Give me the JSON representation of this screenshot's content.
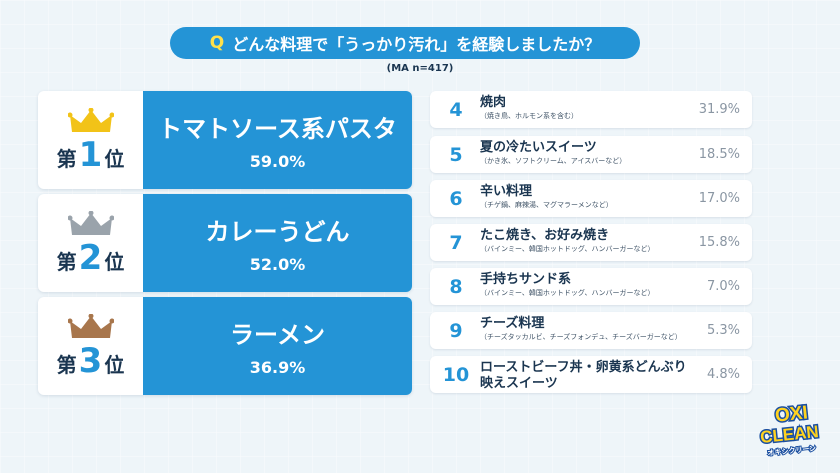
{
  "question": {
    "q_mark": "Q",
    "text": "どんな料理で「うっかり汚れ」を経験しましたか？"
  },
  "sample_note": "(MA n=417)",
  "chart_data": {
    "type": "table",
    "title": "どんな料理で「うっかり汚れ」を経験しましたか？",
    "note": "(MA n=417)",
    "rows": [
      {
        "rank": "1",
        "name": "トマトソース系パスタ",
        "sub": "",
        "value": 59.0,
        "label": "59.0%"
      },
      {
        "rank": "2",
        "name": "カレーうどん",
        "sub": "",
        "value": 52.0,
        "label": "52.0%"
      },
      {
        "rank": "3",
        "name": "ラーメン",
        "sub": "",
        "value": 36.9,
        "label": "36.9%"
      },
      {
        "rank": "4",
        "name": "焼肉",
        "sub": "（焼き鳥、ホルモン系を含む）",
        "value": 31.9,
        "label": "31.9%"
      },
      {
        "rank": "5",
        "name": "夏の冷たいスイーツ",
        "sub": "（かき氷、ソフトクリーム、アイスバーなど）",
        "value": 18.5,
        "label": "18.5%"
      },
      {
        "rank": "6",
        "name": "辛い料理",
        "sub": "（チゲ鍋、麻辣湯、マグマラーメンなど）",
        "value": 17.0,
        "label": "17.0%"
      },
      {
        "rank": "7",
        "name": "たこ焼き、お好み焼き",
        "sub": "（バインミー、韓国ホットドッグ、ハンバーガーなど）",
        "value": 15.8,
        "label": "15.8%"
      },
      {
        "rank": "8",
        "name": "手持ちサンド系",
        "sub": "（バインミー、韓国ホットドッグ、ハンバーガーなど）",
        "value": 7.0,
        "label": "7.0%"
      },
      {
        "rank": "9",
        "name": "チーズ料理",
        "sub": "（チーズタッカルビ、チーズフォンデュ、チーズバーガーなど）",
        "value": 5.3,
        "label": "5.3%"
      },
      {
        "rank": "10",
        "name": "ローストビーフ丼・卵黄系どんぶり",
        "name2": "映えスイーツ",
        "sub": "",
        "value": 4.8,
        "label": "4.8%"
      }
    ]
  },
  "top_ranks": [
    {
      "prefix": "第",
      "num": "1",
      "suffix": "位",
      "crown_color": "#f2c318",
      "crown_icon": "gold-crown"
    },
    {
      "prefix": "第",
      "num": "2",
      "suffix": "位",
      "crown_color": "#9aa3ab",
      "crown_icon": "silver-crown"
    },
    {
      "prefix": "第",
      "num": "3",
      "suffix": "位",
      "crown_color": "#a8764c",
      "crown_icon": "bronze-crown"
    }
  ],
  "logo": {
    "line1": "OXI",
    "line2": "CLEAN",
    "line3": "オキシクリーン"
  },
  "colors": {
    "accent": "#2494d6",
    "q_mark": "#ffe14a",
    "text": "#1a3550",
    "pct_grey": "#8a96a3"
  }
}
